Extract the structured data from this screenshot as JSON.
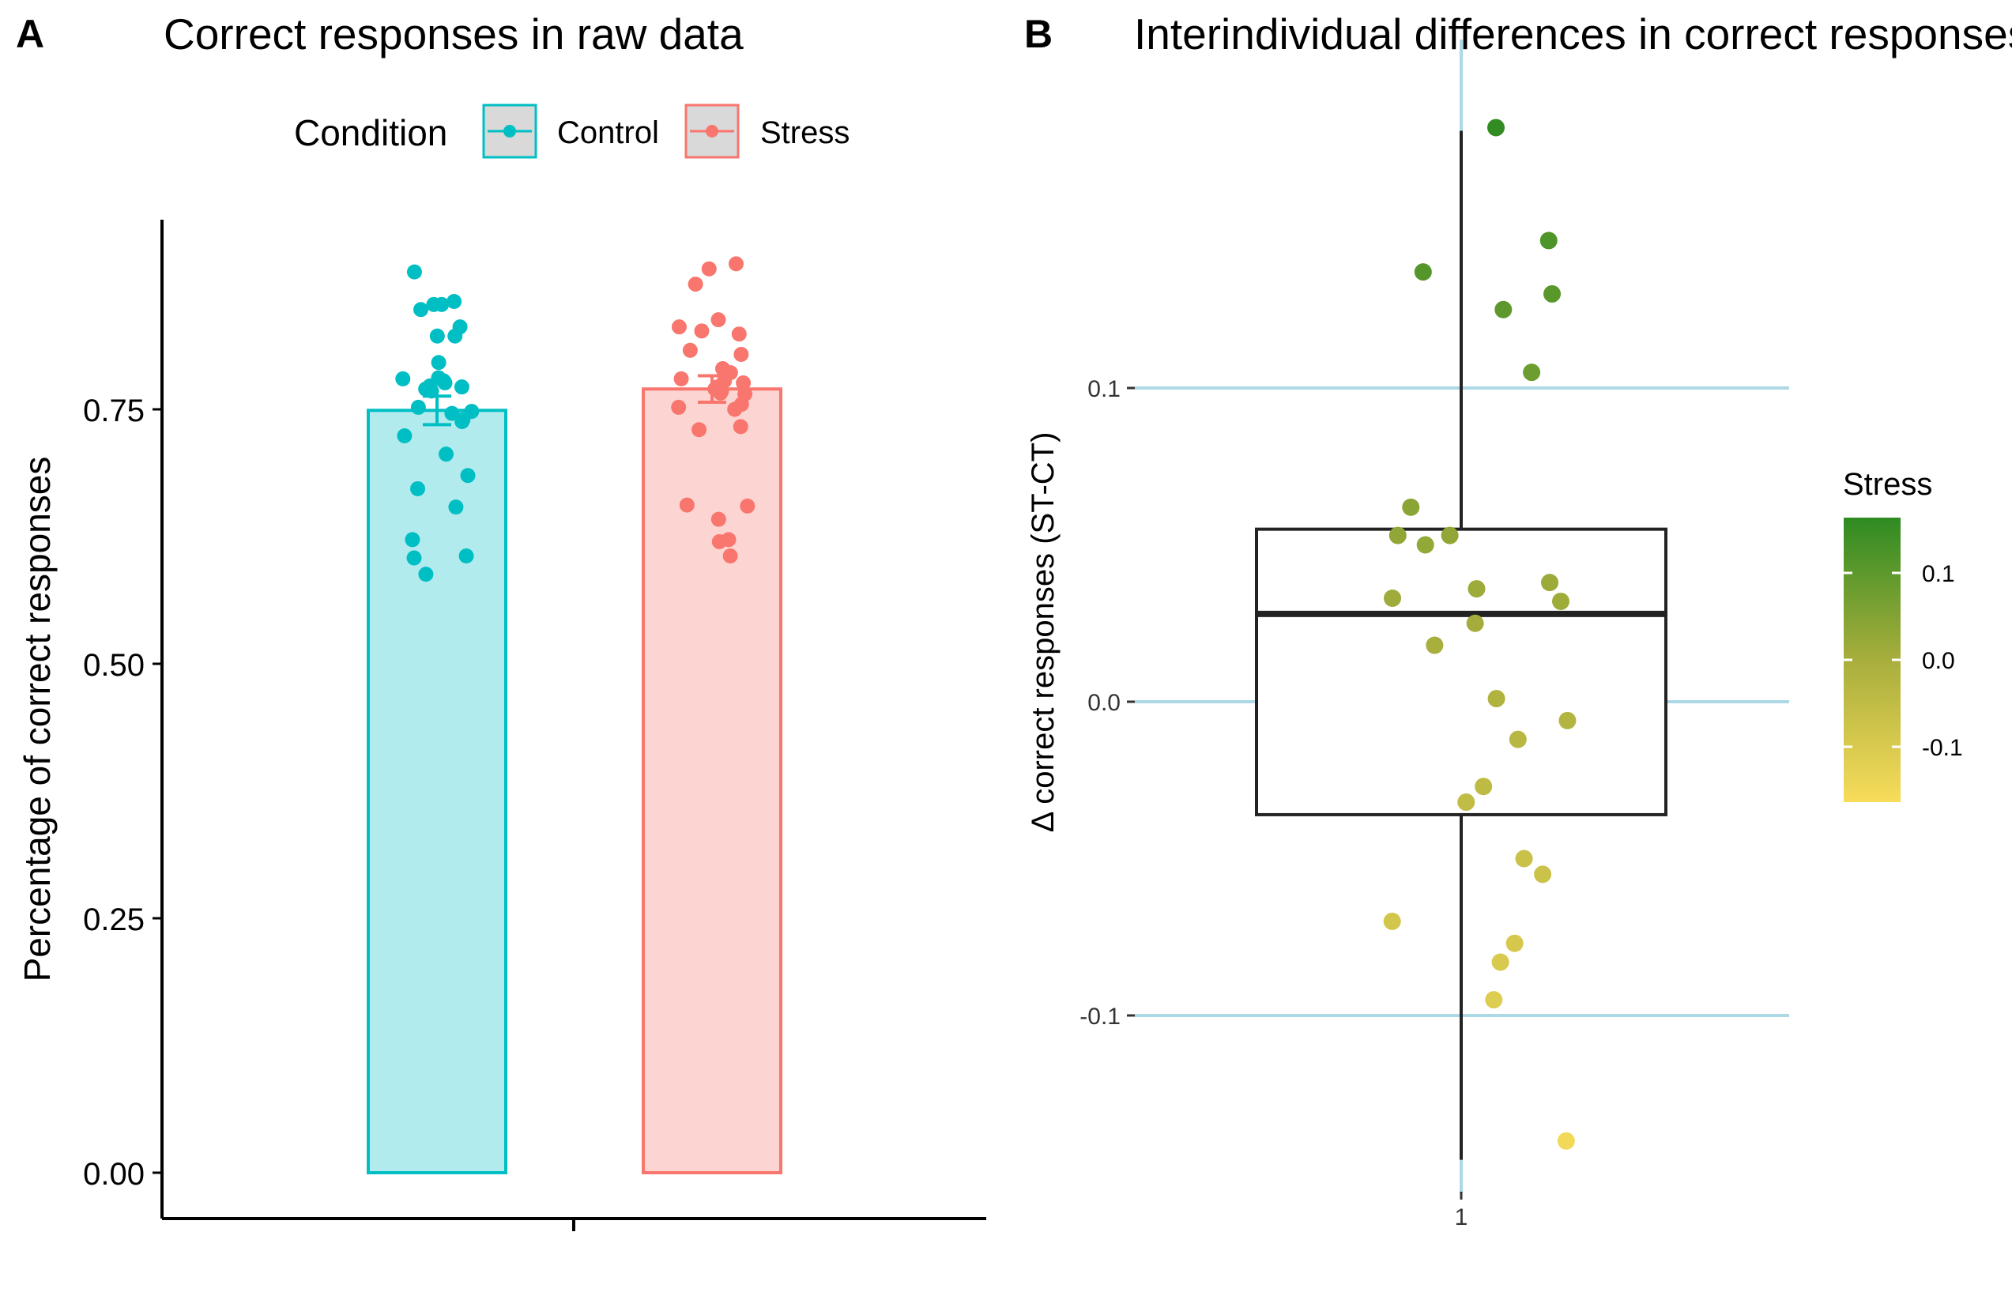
{
  "chart_data": [
    {
      "panel_label": "A",
      "type": "bar",
      "title": "Correct responses in raw data",
      "xlabel": "",
      "ylabel": "Percentage of correct responses",
      "ylim": [
        0,
        0.92
      ],
      "yticks": [
        "0.00",
        "0.25",
        "0.50",
        "0.75"
      ],
      "legend": {
        "title": "Condition",
        "placement": "top",
        "entries": [
          {
            "label": "Control",
            "color": "#00BFC4",
            "fill": "#B2EBED"
          },
          {
            "label": "Stress",
            "color": "#F8766D",
            "fill": "#FCD5D3"
          }
        ]
      },
      "series": [
        {
          "name": "Control",
          "mean": 0.749,
          "se": 0.014,
          "points": [
            0.885,
            0.856,
            0.853,
            0.853,
            0.848,
            0.831,
            0.822,
            0.822,
            0.796,
            0.781,
            0.78,
            0.778,
            0.776,
            0.773,
            0.772,
            0.77,
            0.768,
            0.752,
            0.748,
            0.746,
            0.74,
            0.738,
            0.724,
            0.706,
            0.685,
            0.672,
            0.654,
            0.622,
            0.606,
            0.604,
            0.588
          ]
        },
        {
          "name": "Stress",
          "mean": 0.77,
          "se": 0.013,
          "points": [
            0.893,
            0.888,
            0.873,
            0.838,
            0.831,
            0.827,
            0.824,
            0.808,
            0.804,
            0.79,
            0.786,
            0.78,
            0.778,
            0.776,
            0.772,
            0.77,
            0.768,
            0.766,
            0.765,
            0.755,
            0.752,
            0.75,
            0.733,
            0.73,
            0.656,
            0.655,
            0.642,
            0.622,
            0.62,
            0.606
          ]
        }
      ]
    },
    {
      "panel_label": "B",
      "type": "box",
      "title": "Interindividual differences in correct responses",
      "xlabel": "",
      "ylabel": "Δ correct responses (ST-CT)",
      "xticks": [
        "1"
      ],
      "ylim": [
        -0.155,
        0.19
      ],
      "yticks": [
        "-0.1",
        "0.0",
        "0.1"
      ],
      "grid": "horizontal at ticks",
      "box": {
        "q1": -0.036,
        "median": 0.028,
        "q3": 0.055,
        "whisker_low": -0.146,
        "whisker_high": 0.182
      },
      "points": [
        0.183,
        0.147,
        0.137,
        0.13,
        0.125,
        0.105,
        0.062,
        0.053,
        0.053,
        0.05,
        0.038,
        0.036,
        0.033,
        0.032,
        0.025,
        0.018,
        0.001,
        -0.006,
        -0.012,
        -0.027,
        -0.032,
        -0.05,
        -0.055,
        -0.07,
        -0.077,
        -0.083,
        -0.095,
        -0.14
      ],
      "colorbar": {
        "title": "Stress",
        "placement": "right",
        "ticks": [
          "0.1",
          "0.0",
          "-0.1"
        ],
        "low_color": "#F7DC5A",
        "high_color": "#2E8B22"
      }
    }
  ]
}
